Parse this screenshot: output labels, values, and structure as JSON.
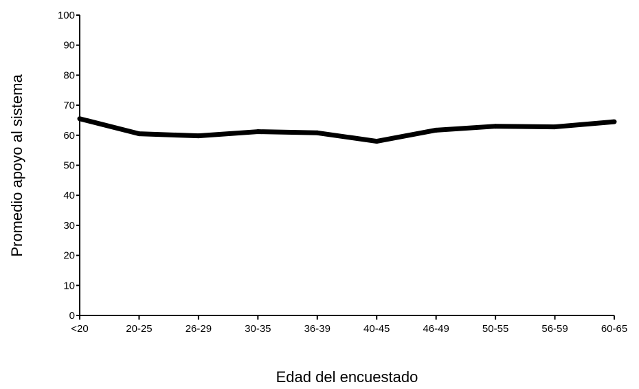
{
  "chart_data": {
    "type": "line",
    "title": "",
    "xlabel": "Edad del encuestado",
    "ylabel": "Promedio apoyo al sistema",
    "categories": [
      "<20",
      "20-25",
      "26-29",
      "30-35",
      "36-39",
      "40-45",
      "46-49",
      "50-55",
      "56-59",
      "60-65"
    ],
    "series": [
      {
        "values": [
          65.5,
          60.5,
          59.8,
          61.2,
          60.8,
          58.0,
          61.7,
          63.0,
          62.8,
          64.5
        ]
      }
    ],
    "ylim": [
      0,
      100
    ],
    "yticks": [
      0,
      10,
      20,
      30,
      40,
      50,
      60,
      70,
      80,
      90,
      100
    ],
    "grid": false,
    "legend": "none",
    "line_color": "#000000"
  }
}
